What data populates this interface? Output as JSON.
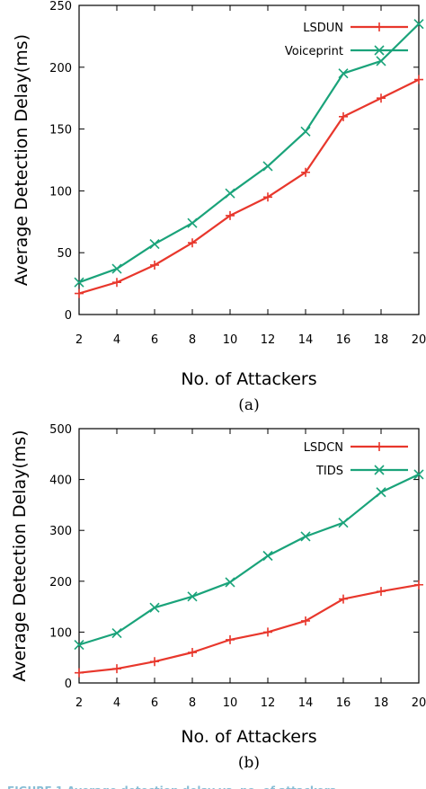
{
  "chart_data": [
    {
      "type": "line",
      "caption": "(a)",
      "xlabel": "No. of Attackers",
      "ylabel": "Average Detection Delay(ms)",
      "x": [
        2,
        4,
        6,
        8,
        10,
        12,
        14,
        16,
        18,
        20
      ],
      "xlim": [
        2,
        20
      ],
      "ylim": [
        0,
        250
      ],
      "xticks": [
        2,
        4,
        6,
        8,
        10,
        12,
        14,
        16,
        18,
        20
      ],
      "yticks": [
        0,
        50,
        100,
        150,
        200,
        250
      ],
      "legend": "top-right",
      "series": [
        {
          "name": "LSDUN",
          "color": "#e8372c",
          "marker": "plus",
          "values": [
            17,
            26,
            40,
            58,
            80,
            95,
            115,
            160,
            175,
            190
          ]
        },
        {
          "name": "Voiceprint",
          "color": "#1aa37a",
          "marker": "x",
          "values": [
            26,
            37,
            57,
            74,
            98,
            120,
            148,
            195,
            205,
            235
          ]
        }
      ]
    },
    {
      "type": "line",
      "caption": "(b)",
      "xlabel": "No. of Attackers",
      "ylabel": "Average Detection Delay(ms)",
      "x": [
        2,
        4,
        6,
        8,
        10,
        12,
        14,
        16,
        18,
        20
      ],
      "xlim": [
        2,
        20
      ],
      "ylim": [
        0,
        500
      ],
      "xticks": [
        2,
        4,
        6,
        8,
        10,
        12,
        14,
        16,
        18,
        20
      ],
      "yticks": [
        0,
        100,
        200,
        300,
        400,
        500
      ],
      "legend": "top-right",
      "series": [
        {
          "name": "LSDCN",
          "color": "#e8372c",
          "marker": "plus",
          "values": [
            20,
            28,
            42,
            60,
            85,
            100,
            122,
            165,
            180,
            193
          ]
        },
        {
          "name": "TIDS",
          "color": "#1aa37a",
          "marker": "x",
          "values": [
            75,
            98,
            148,
            170,
            198,
            250,
            288,
            315,
            375,
            410
          ]
        }
      ]
    }
  ]
}
